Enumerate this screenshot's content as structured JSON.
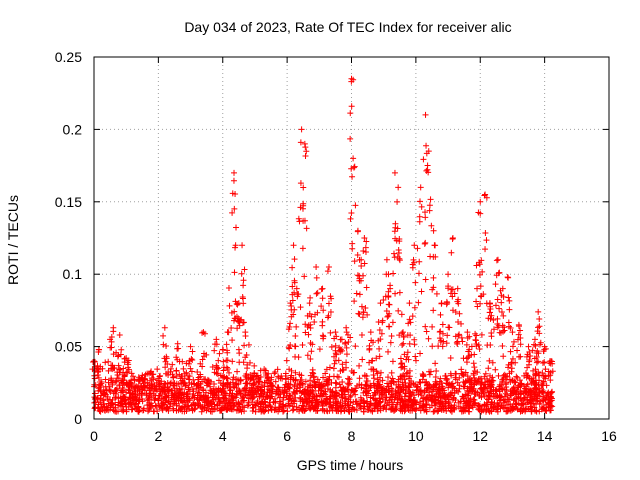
{
  "chart_data": {
    "type": "scatter",
    "title": "Day 034 of 2023, Rate Of TEC Index for receiver alic",
    "xlabel": "GPS time / hours",
    "ylabel": "ROTI / TECUs",
    "xlim": [
      0,
      16
    ],
    "ylim": [
      0,
      0.25
    ],
    "xticks": [
      "0",
      "2",
      "4",
      "6",
      "8",
      "10",
      "12",
      "14",
      "16"
    ],
    "yticks": [
      "0",
      "0.05",
      "0.1",
      "0.15",
      "0.2",
      "0.25"
    ],
    "grid": true,
    "marker": "+",
    "color": "#ff0000",
    "x_extent": [
      0,
      14.25
    ],
    "baseline_band": [
      0.005,
      0.035
    ],
    "features": [
      {
        "x": 0.0,
        "y": 0.04
      },
      {
        "x": 0.15,
        "y": 0.048
      },
      {
        "x": 0.5,
        "y": 0.055
      },
      {
        "x": 0.6,
        "y": 0.063
      },
      {
        "x": 0.8,
        "y": 0.058
      },
      {
        "x": 1.0,
        "y": 0.042
      },
      {
        "x": 2.2,
        "y": 0.063
      },
      {
        "x": 2.6,
        "y": 0.052
      },
      {
        "x": 3.0,
        "y": 0.05
      },
      {
        "x": 3.4,
        "y": 0.06
      },
      {
        "x": 3.8,
        "y": 0.055
      },
      {
        "x": 4.0,
        "y": 0.048
      },
      {
        "x": 4.15,
        "y": 0.06
      },
      {
        "x": 4.35,
        "y": 0.17
      },
      {
        "x": 4.4,
        "y": 0.12
      },
      {
        "x": 4.5,
        "y": 0.08
      },
      {
        "x": 4.6,
        "y": 0.12
      },
      {
        "x": 4.7,
        "y": 0.06
      },
      {
        "x": 6.1,
        "y": 0.08
      },
      {
        "x": 6.2,
        "y": 0.12
      },
      {
        "x": 6.3,
        "y": 0.09
      },
      {
        "x": 6.45,
        "y": 0.2
      },
      {
        "x": 6.55,
        "y": 0.19
      },
      {
        "x": 6.7,
        "y": 0.08
      },
      {
        "x": 6.9,
        "y": 0.105
      },
      {
        "x": 7.1,
        "y": 0.09
      },
      {
        "x": 7.3,
        "y": 0.105
      },
      {
        "x": 7.5,
        "y": 0.06
      },
      {
        "x": 7.7,
        "y": 0.055
      },
      {
        "x": 7.85,
        "y": 0.06
      },
      {
        "x": 8.0,
        "y": 0.235
      },
      {
        "x": 8.05,
        "y": 0.18
      },
      {
        "x": 8.2,
        "y": 0.13
      },
      {
        "x": 8.3,
        "y": 0.11
      },
      {
        "x": 8.4,
        "y": 0.125
      },
      {
        "x": 8.6,
        "y": 0.06
      },
      {
        "x": 8.9,
        "y": 0.08
      },
      {
        "x": 9.1,
        "y": 0.11
      },
      {
        "x": 9.2,
        "y": 0.09
      },
      {
        "x": 9.35,
        "y": 0.17
      },
      {
        "x": 9.45,
        "y": 0.16
      },
      {
        "x": 9.6,
        "y": 0.06
      },
      {
        "x": 9.8,
        "y": 0.08
      },
      {
        "x": 9.95,
        "y": 0.12
      },
      {
        "x": 10.15,
        "y": 0.16
      },
      {
        "x": 10.3,
        "y": 0.21
      },
      {
        "x": 10.4,
        "y": 0.185
      },
      {
        "x": 10.55,
        "y": 0.13
      },
      {
        "x": 10.8,
        "y": 0.08
      },
      {
        "x": 11.0,
        "y": 0.1
      },
      {
        "x": 11.15,
        "y": 0.125
      },
      {
        "x": 11.3,
        "y": 0.09
      },
      {
        "x": 11.6,
        "y": 0.06
      },
      {
        "x": 11.9,
        "y": 0.09
      },
      {
        "x": 12.0,
        "y": 0.15
      },
      {
        "x": 12.15,
        "y": 0.155
      },
      {
        "x": 12.3,
        "y": 0.08
      },
      {
        "x": 12.55,
        "y": 0.11
      },
      {
        "x": 12.7,
        "y": 0.09
      },
      {
        "x": 12.85,
        "y": 0.098
      },
      {
        "x": 13.0,
        "y": 0.06
      },
      {
        "x": 13.2,
        "y": 0.065
      },
      {
        "x": 13.5,
        "y": 0.05
      },
      {
        "x": 13.7,
        "y": 0.055
      },
      {
        "x": 13.8,
        "y": 0.074
      },
      {
        "x": 14.0,
        "y": 0.05
      },
      {
        "x": 14.2,
        "y": 0.04
      }
    ]
  }
}
